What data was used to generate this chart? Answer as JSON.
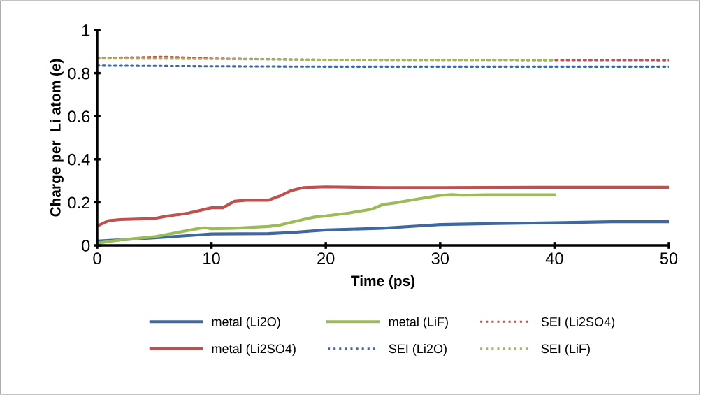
{
  "chart_data": {
    "type": "line",
    "xlabel": "Time (ps)",
    "ylabel": "Charge per  Li atom (e)",
    "xlim": [
      0,
      50
    ],
    "xticks": [
      0,
      10,
      20,
      30,
      40,
      50
    ],
    "ylim": [
      0,
      1
    ],
    "yticks": [
      0,
      0.2,
      0.4,
      0.6,
      0.8,
      1
    ],
    "grid": false,
    "legend": "bottom",
    "marker": "none",
    "series": [
      {
        "name": "metal (Li2O)",
        "color": "#3f68a0",
        "line_style": "solid",
        "x": [
          0,
          5,
          10,
          15,
          17,
          20,
          25,
          28,
          30,
          35,
          40,
          45,
          50
        ],
        "values": [
          0.02,
          0.035,
          0.053,
          0.055,
          0.06,
          0.072,
          0.08,
          0.09,
          0.097,
          0.102,
          0.105,
          0.11,
          0.11
        ]
      },
      {
        "name": "metal (Li2SO4)",
        "color": "#c0504d",
        "line_style": "solid",
        "x": [
          0,
          1,
          2,
          5,
          6,
          8,
          10,
          11,
          12,
          13,
          15,
          16,
          17,
          18,
          20,
          25,
          30,
          40,
          50
        ],
        "values": [
          0.09,
          0.115,
          0.12,
          0.125,
          0.135,
          0.15,
          0.175,
          0.175,
          0.205,
          0.21,
          0.21,
          0.23,
          0.255,
          0.268,
          0.272,
          0.268,
          0.268,
          0.27,
          0.27
        ]
      },
      {
        "name": "metal (LiF)",
        "color": "#9bbb59",
        "line_style": "solid",
        "x": [
          0,
          2,
          5,
          7,
          9,
          9.5,
          10,
          12,
          15,
          16,
          18,
          19,
          20,
          22,
          24,
          25,
          26,
          28,
          30,
          31,
          32,
          34,
          40
        ],
        "values": [
          0.01,
          0.025,
          0.04,
          0.06,
          0.08,
          0.082,
          0.077,
          0.08,
          0.088,
          0.095,
          0.12,
          0.132,
          0.137,
          0.15,
          0.168,
          0.19,
          0.197,
          0.215,
          0.232,
          0.236,
          0.233,
          0.235,
          0.235
        ]
      },
      {
        "name": "SEI (Li2O)",
        "color": "#3f68a0",
        "line_style": "dotted",
        "x": [
          0,
          10,
          20,
          50
        ],
        "values": [
          0.835,
          0.832,
          0.83,
          0.83
        ]
      },
      {
        "name": "SEI (Li2SO4)",
        "color": "#c0504d",
        "line_style": "dotted",
        "x": [
          0,
          5,
          6,
          10,
          20,
          50
        ],
        "values": [
          0.87,
          0.875,
          0.876,
          0.868,
          0.862,
          0.86
        ]
      },
      {
        "name": "SEI (LiF)",
        "color": "#9bbb59",
        "line_style": "dotted",
        "x": [
          0,
          10,
          20,
          40
        ],
        "values": [
          0.868,
          0.866,
          0.862,
          0.862
        ]
      }
    ]
  }
}
